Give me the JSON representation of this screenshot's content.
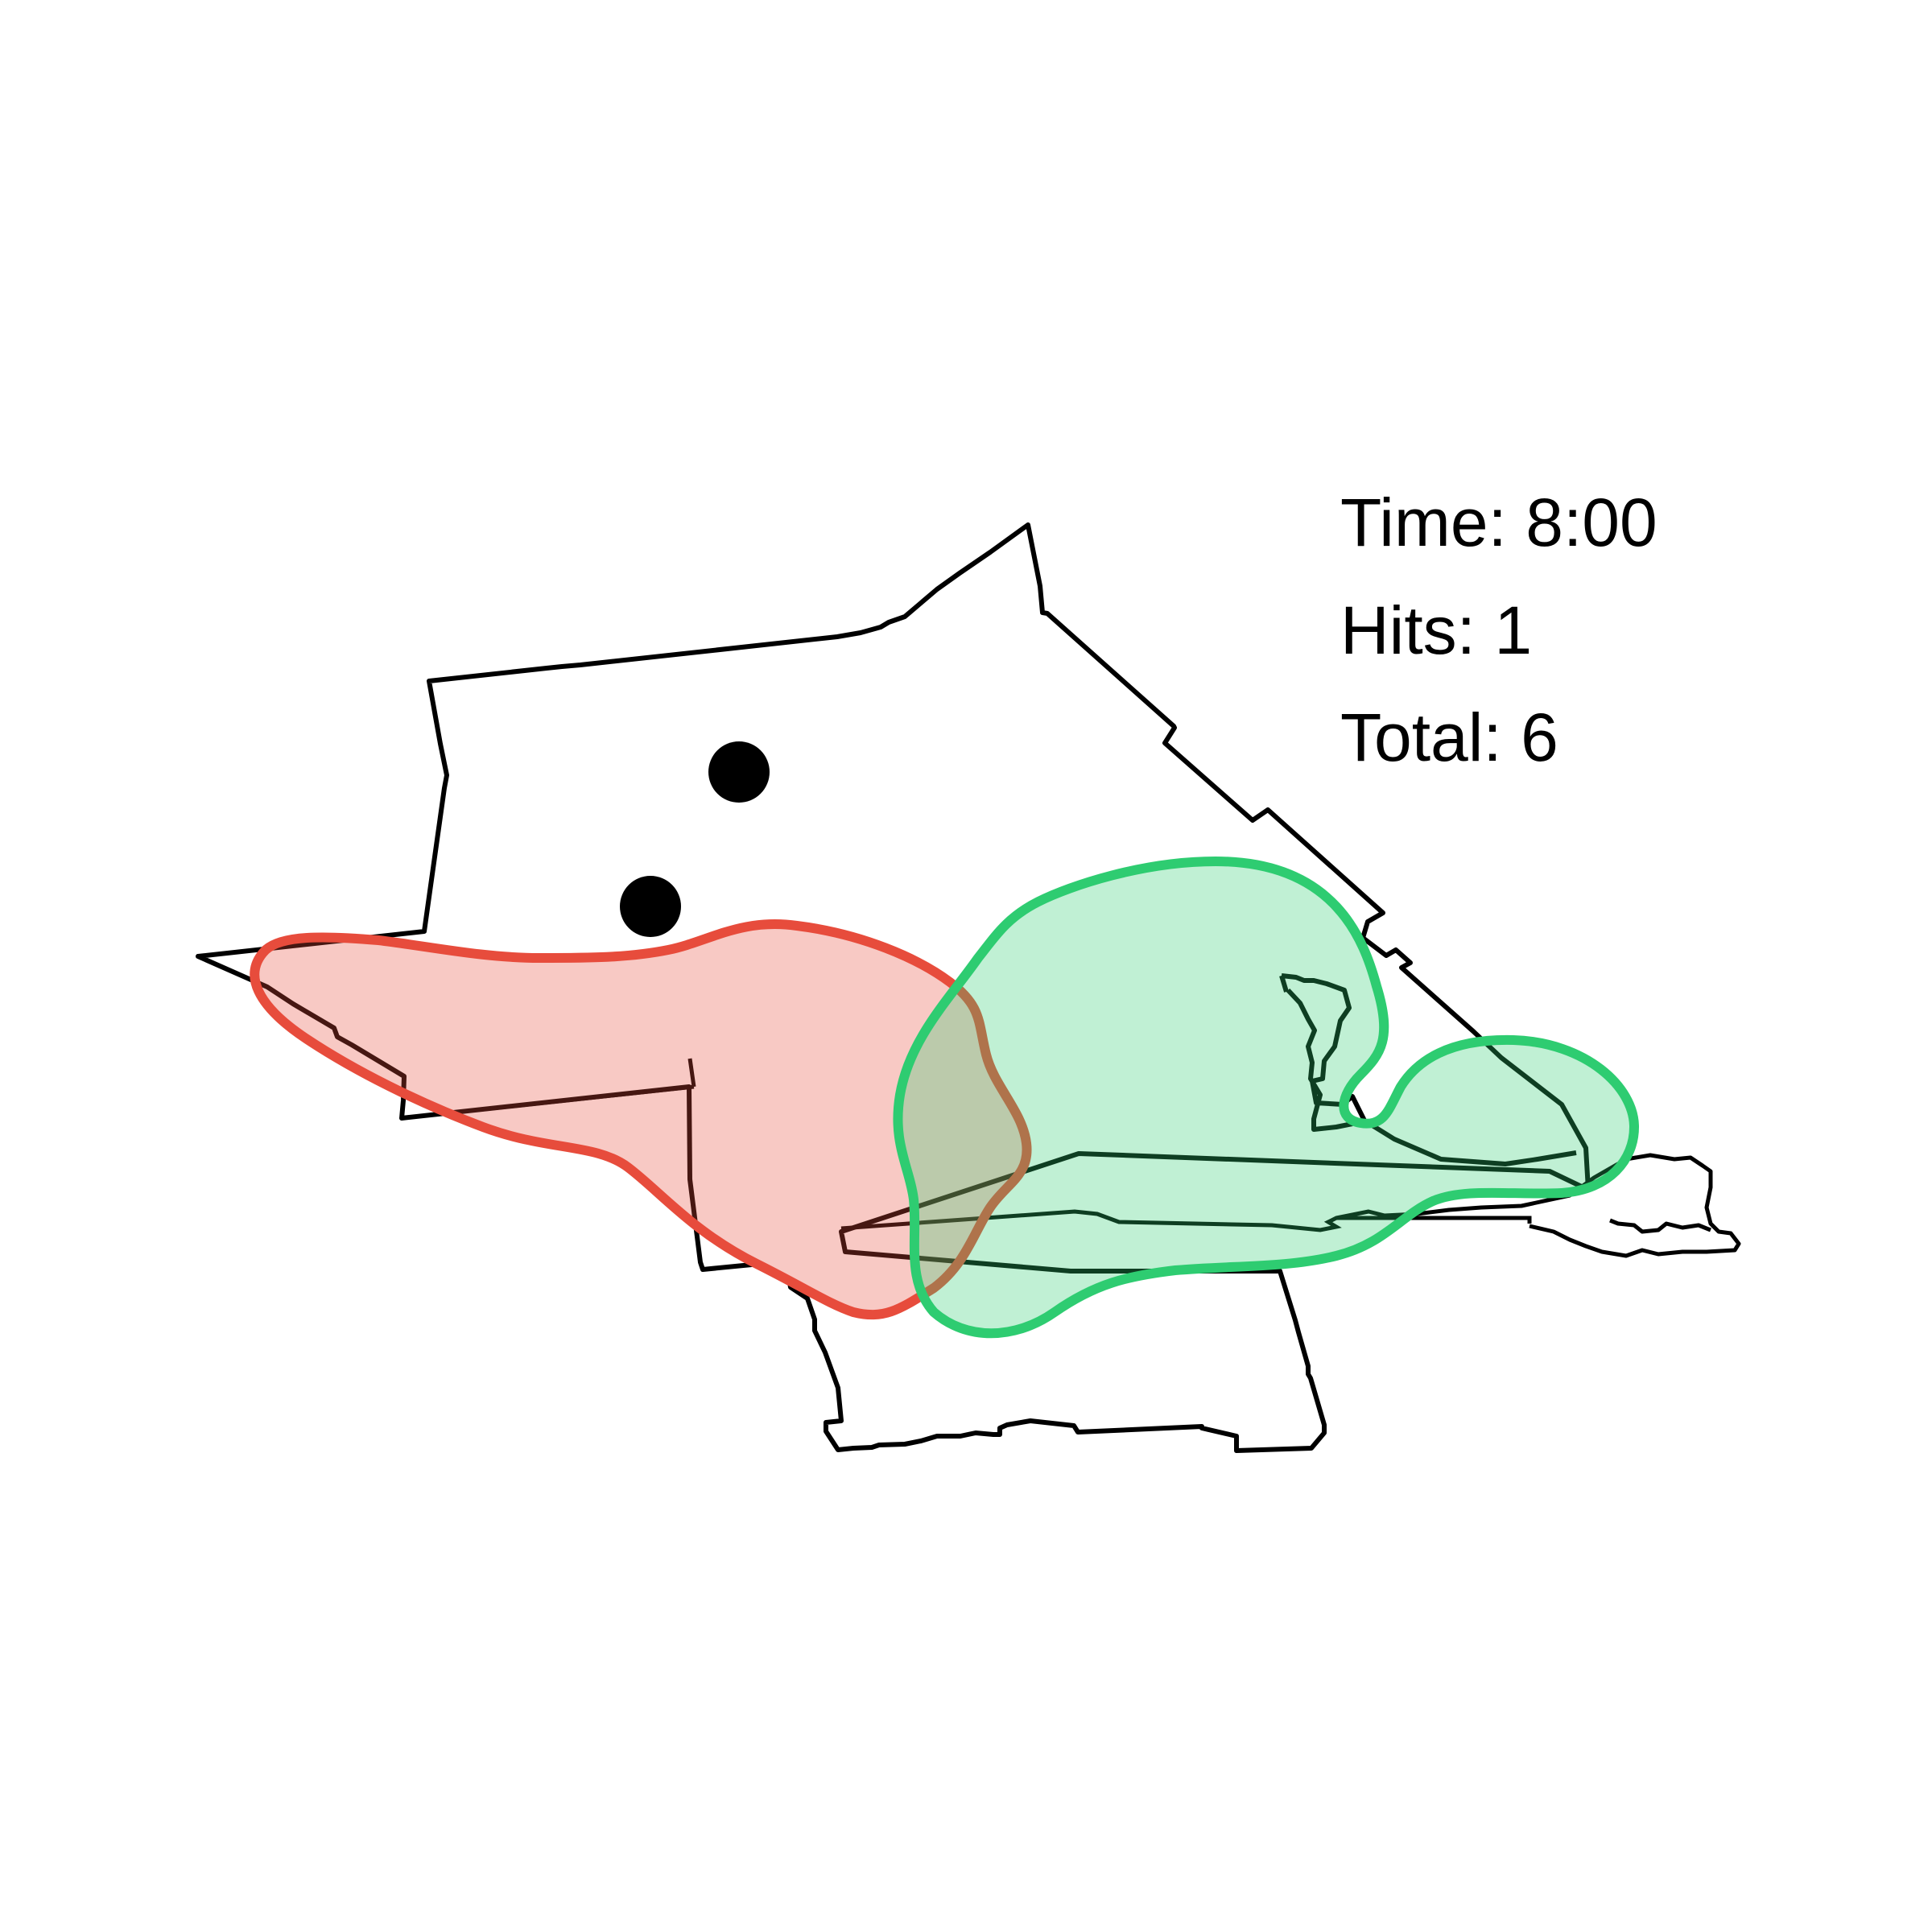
{
  "stats": {
    "time": "Time: 8:00",
    "hits": "Hits: 1",
    "total": "Total: 6"
  },
  "markers": {
    "count": 2,
    "color": "#000000"
  },
  "regions": {
    "red": {
      "stroke": "#e74c3c",
      "fill": "#f5c8c4"
    },
    "green": {
      "stroke": "#2ecc71",
      "fill": "#bfeed6"
    }
  },
  "colors": {
    "outline": "#000000",
    "background": "#ffffff"
  }
}
